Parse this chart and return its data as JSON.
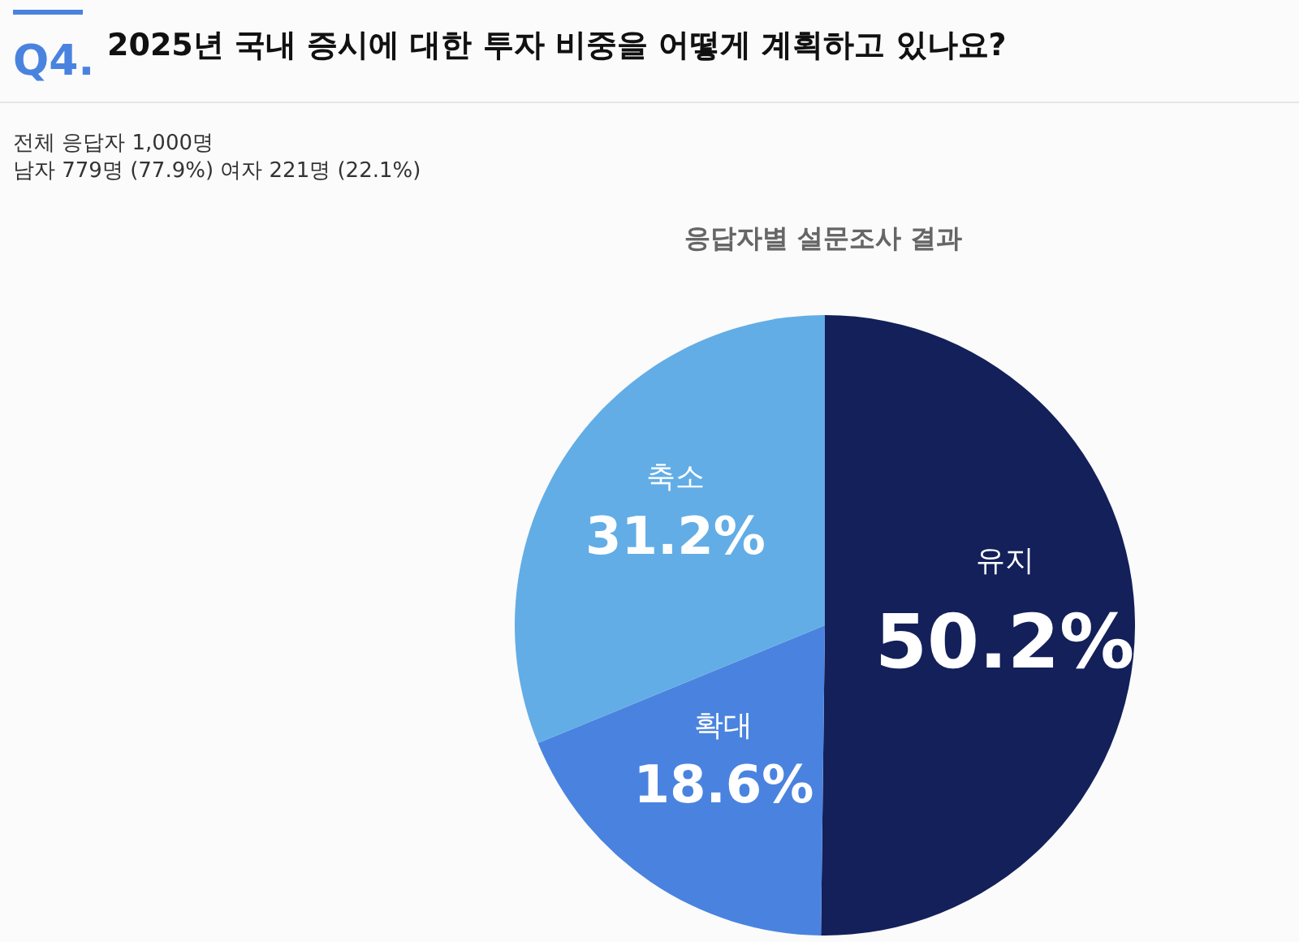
{
  "chart_data": {
    "type": "pie",
    "title": "2025년 국내 증시에 대한 투자 비중을 어떻게 계획하고 있나요?",
    "subtitle": "응답자별 설문조사 결과",
    "annotations": [
      "Q4.",
      "전체 응답자 1,000명",
      "남자 779명 (77.9%) 여자 221명 (22.1%)"
    ],
    "categories": [
      "유지",
      "확대",
      "축소"
    ],
    "values": [
      50.2,
      18.6,
      31.2
    ],
    "colors": [
      "#13205a",
      "#4a83df",
      "#62ade6"
    ],
    "value_labels": [
      "50.2%",
      "18.6%",
      "31.2%"
    ]
  }
}
